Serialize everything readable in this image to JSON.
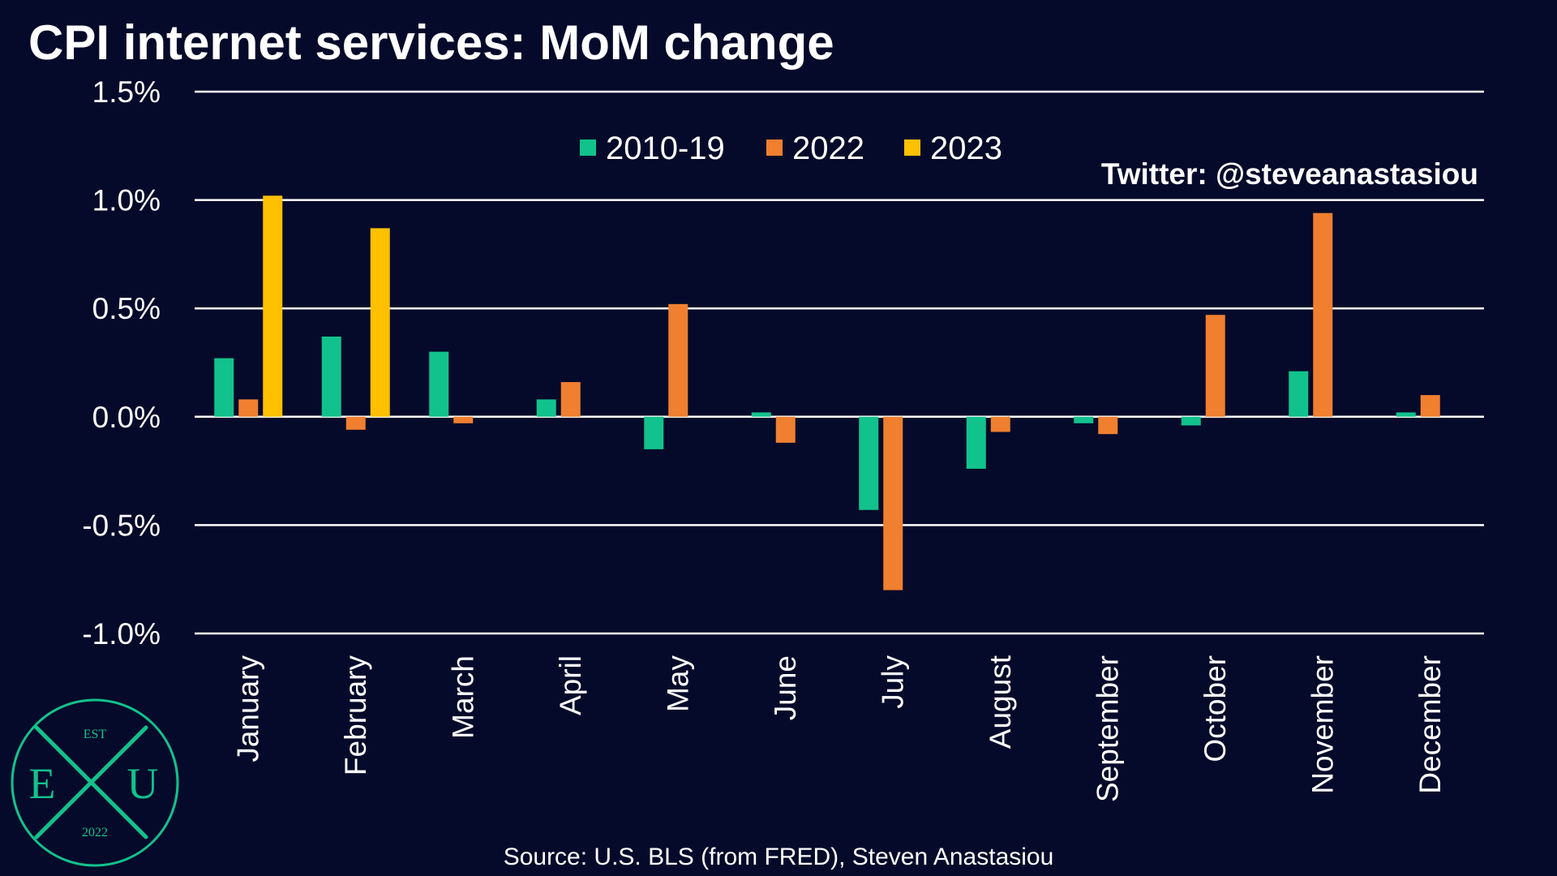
{
  "chart_data": {
    "type": "bar",
    "title": "CPI internet services: MoM change",
    "xlabel": "",
    "ylabel": "",
    "ylim": [
      -1.0,
      1.5
    ],
    "y_ticks": [
      "1.5%",
      "1.0%",
      "0.5%",
      "0.0%",
      "-0.5%",
      "-1.0%"
    ],
    "y_tick_values": [
      1.5,
      1.0,
      0.5,
      0.0,
      -0.5,
      -1.0
    ],
    "grid": true,
    "legend_position": "top-center",
    "categories": [
      "January",
      "February",
      "March",
      "April",
      "May",
      "June",
      "July",
      "August",
      "September",
      "October",
      "November",
      "December"
    ],
    "series": [
      {
        "name": "2010-19",
        "color": "#12c28c",
        "values": [
          0.27,
          0.37,
          0.3,
          0.08,
          -0.15,
          0.02,
          -0.43,
          -0.24,
          -0.03,
          -0.04,
          0.21,
          0.02
        ]
      },
      {
        "name": "2022",
        "color": "#f07f30",
        "values": [
          0.08,
          -0.06,
          -0.03,
          0.16,
          0.52,
          -0.12,
          -0.8,
          -0.07,
          -0.08,
          0.47,
          0.94,
          0.1
        ]
      },
      {
        "name": "2023",
        "color": "#ffc000",
        "values": [
          1.02,
          0.87,
          null,
          null,
          null,
          null,
          null,
          null,
          null,
          null,
          null,
          null
        ]
      }
    ]
  },
  "twitter_handle": "Twitter: @steveanastasiou",
  "source": "Source: U.S. BLS (from FRED), Steven Anastasiou",
  "logo": {
    "top_text": "EST",
    "left_letter": "E",
    "right_letter": "U",
    "bottom_text": "2022",
    "color": "#12c28c"
  },
  "colors": {
    "background": "#050a2a",
    "gridline": "#ffffff",
    "text": "#ffffff"
  }
}
